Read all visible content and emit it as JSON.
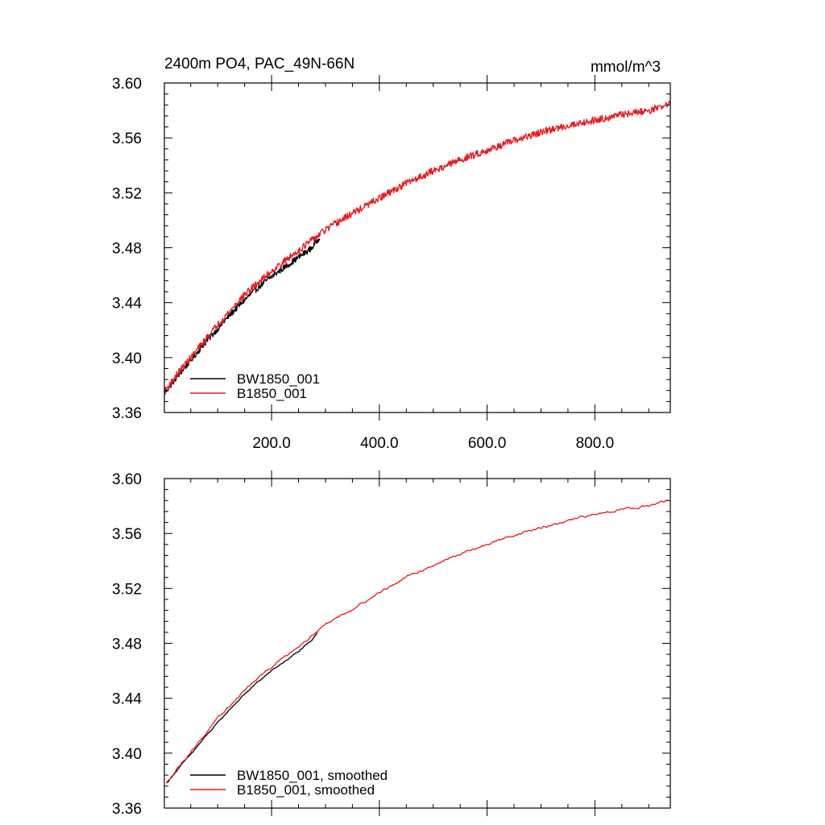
{
  "chart_data": [
    {
      "type": "line",
      "title": "2400m PO4, PAC_49N-66N",
      "units": "mmol/m^3",
      "xlabel": "",
      "ylabel": "",
      "xlim": [
        1,
        940
      ],
      "ylim": [
        3.36,
        3.6
      ],
      "x_ticks": [
        200,
        400,
        600,
        800
      ],
      "x_tick_labels": [
        "200.0",
        "400.0",
        "600.0",
        "800.0"
      ],
      "y_ticks": [
        3.36,
        3.4,
        3.44,
        3.48,
        3.52,
        3.56,
        3.6
      ],
      "y_tick_labels": [
        "3.36",
        "3.40",
        "3.44",
        "3.48",
        "3.52",
        "3.56",
        "3.60"
      ],
      "grid": false,
      "legend_position": "bottom-left",
      "series": [
        {
          "name": "BW1850_001",
          "color": "#000000",
          "x": [
            1,
            25,
            50,
            75,
            100,
            125,
            150,
            175,
            200,
            225,
            250,
            275,
            290
          ],
          "y": [
            3.374,
            3.386,
            3.398,
            3.41,
            3.421,
            3.432,
            3.442,
            3.451,
            3.459,
            3.466,
            3.473,
            3.48,
            3.488
          ],
          "noise": 0.0022
        },
        {
          "name": "B1850_001",
          "color": "#e31a1c",
          "x": [
            1,
            25,
            50,
            75,
            100,
            150,
            200,
            250,
            300,
            350,
            400,
            450,
            500,
            550,
            600,
            650,
            700,
            750,
            800,
            850,
            900,
            940
          ],
          "y": [
            3.375,
            3.388,
            3.4,
            3.412,
            3.424,
            3.446,
            3.463,
            3.478,
            3.493,
            3.505,
            3.516,
            3.527,
            3.536,
            3.544,
            3.551,
            3.558,
            3.564,
            3.569,
            3.573,
            3.577,
            3.58,
            3.585
          ],
          "noise": 0.0026
        }
      ]
    },
    {
      "type": "line",
      "title": "",
      "xlabel": "",
      "ylabel": "",
      "xlim": [
        1,
        940
      ],
      "ylim": [
        3.36,
        3.6
      ],
      "x_ticks": [
        200,
        400,
        600,
        800
      ],
      "y_ticks": [
        3.36,
        3.4,
        3.44,
        3.48,
        3.52,
        3.56,
        3.6
      ],
      "y_tick_labels": [
        "3.36",
        "3.40",
        "3.44",
        "3.48",
        "3.52",
        "3.56",
        "3.60"
      ],
      "grid": false,
      "legend_position": "bottom-left",
      "series": [
        {
          "name": "BW1850_001, smoothed",
          "color": "#000000",
          "x": [
            5,
            25,
            50,
            75,
            100,
            125,
            150,
            175,
            200,
            225,
            250,
            275,
            285
          ],
          "y": [
            3.378,
            3.388,
            3.399,
            3.411,
            3.422,
            3.433,
            3.443,
            3.452,
            3.46,
            3.467,
            3.474,
            3.482,
            3.488
          ],
          "noise": 0.0006
        },
        {
          "name": "B1850_001, smoothed",
          "color": "#e31a1c",
          "x": [
            5,
            25,
            50,
            75,
            100,
            150,
            200,
            250,
            300,
            350,
            400,
            450,
            500,
            550,
            600,
            650,
            700,
            750,
            800,
            850,
            900,
            935
          ],
          "y": [
            3.378,
            3.389,
            3.401,
            3.413,
            3.425,
            3.446,
            3.463,
            3.478,
            3.494,
            3.505,
            3.517,
            3.528,
            3.537,
            3.545,
            3.552,
            3.559,
            3.564,
            3.569,
            3.574,
            3.578,
            3.58,
            3.584
          ],
          "noise": 0.0009
        }
      ]
    }
  ]
}
